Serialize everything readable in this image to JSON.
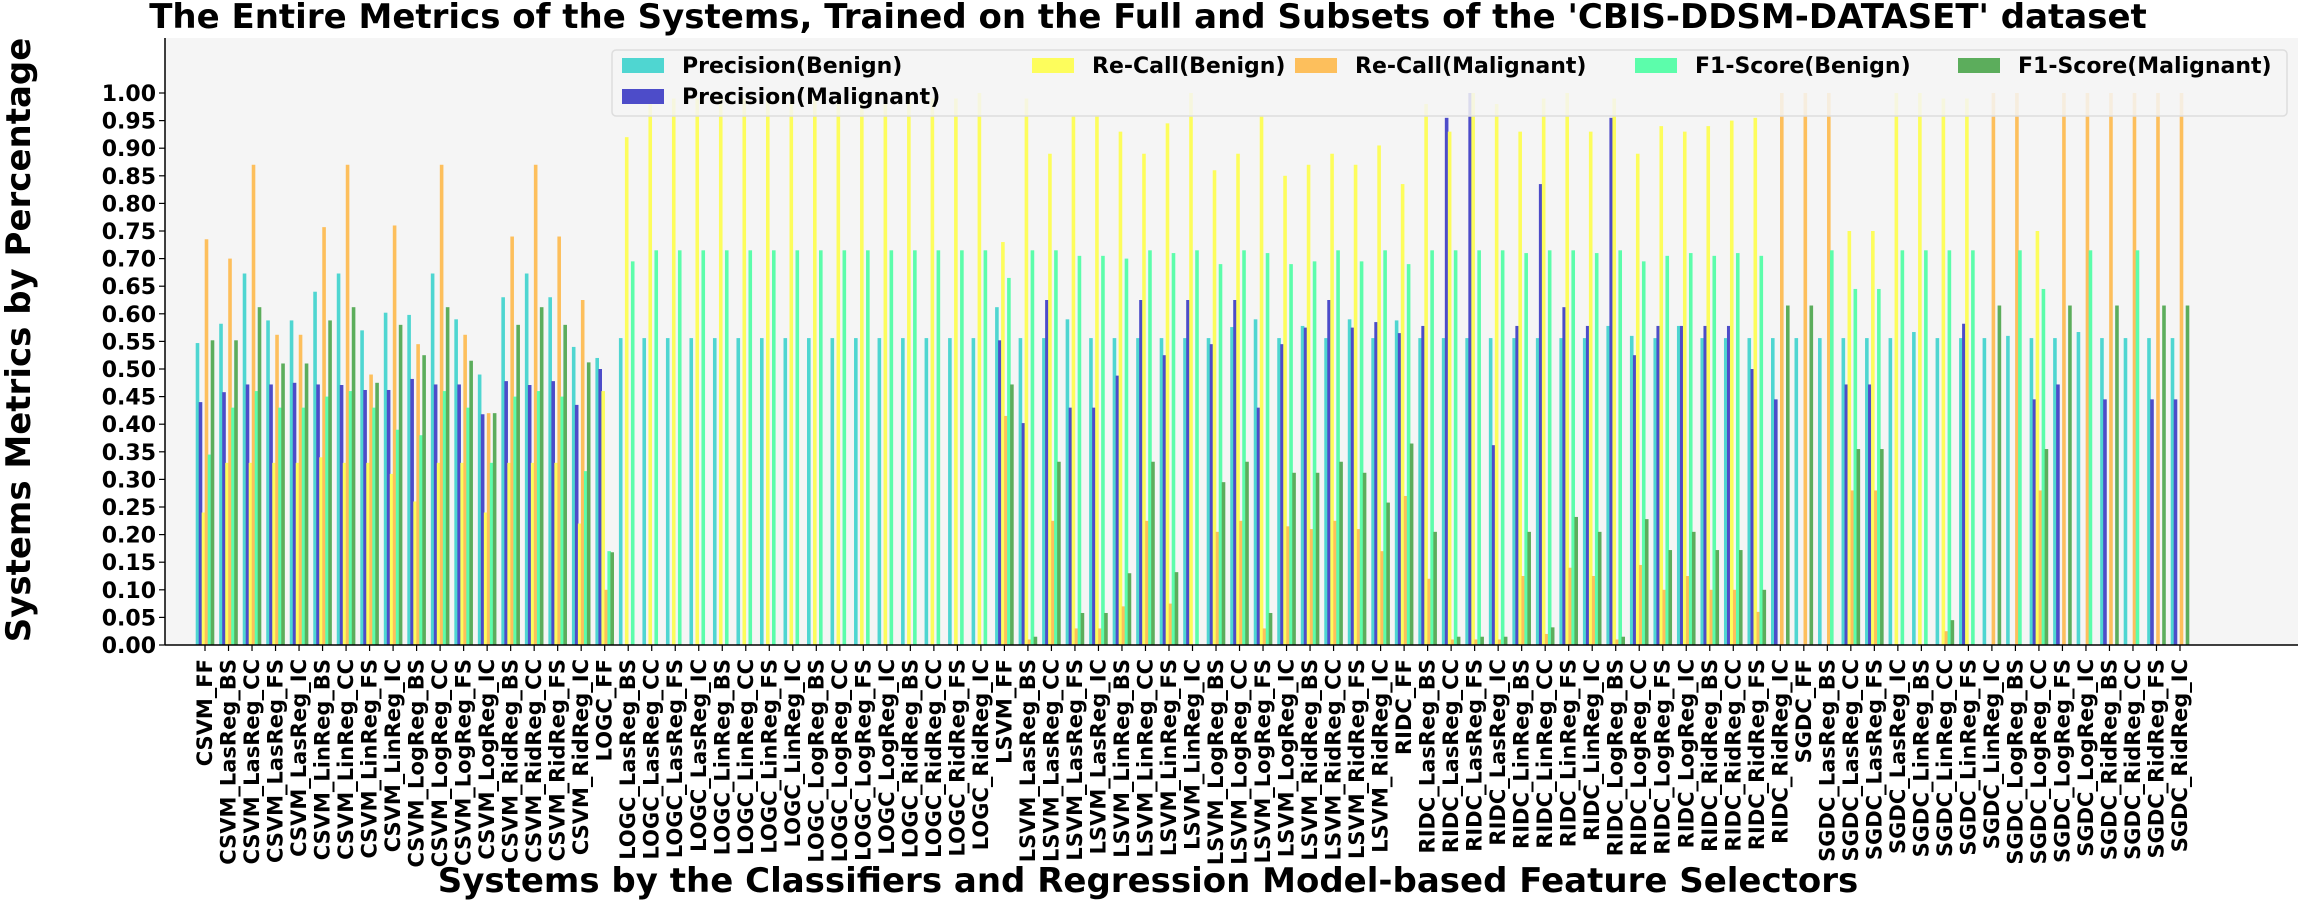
{
  "chart_data": {
    "type": "bar",
    "title": "The Entire Metrics of the Systems, Trained on the Full and Subsets of the 'CBIS-DDSM-DATASET' dataset",
    "xlabel": "Systems by the Classifiers and Regression Model-based Feature Selectors",
    "ylabel": "Systems Metrics by Percentage",
    "ylim": [
      0,
      1.0
    ],
    "yticks": [
      "0.00",
      "0.05",
      "0.10",
      "0.15",
      "0.20",
      "0.25",
      "0.30",
      "0.35",
      "0.40",
      "0.45",
      "0.50",
      "0.55",
      "0.60",
      "0.65",
      "0.70",
      "0.75",
      "0.80",
      "0.85",
      "0.90",
      "0.95",
      "1.00"
    ],
    "grid": false,
    "legend_position": "top-right",
    "categories": [
      "CSVM_FF",
      "CSVM_LasReg_BS",
      "CSVM_LasReg_CC",
      "CSVM_LasReg_FS",
      "CSVM_LasReg_IC",
      "CSVM_LinReg_BS",
      "CSVM_LinReg_CC",
      "CSVM_LinReg_FS",
      "CSVM_LinReg_IC",
      "CSVM_LogReg_BS",
      "CSVM_LogReg_CC",
      "CSVM_LogReg_FS",
      "CSVM_LogReg_IC",
      "CSVM_RidReg_BS",
      "CSVM_RidReg_CC",
      "CSVM_RidReg_FS",
      "CSVM_RidReg_IC",
      "LOGC_FF",
      "LOGC_LasReg_BS",
      "LOGC_LasReg_CC",
      "LOGC_LasReg_FS",
      "LOGC_LasReg_IC",
      "LOGC_LinReg_BS",
      "LOGC_LinReg_CC",
      "LOGC_LinReg_FS",
      "LOGC_LinReg_IC",
      "LOGC_LogReg_BS",
      "LOGC_LogReg_CC",
      "LOGC_LogReg_FS",
      "LOGC_LogReg_IC",
      "LOGC_RidReg_BS",
      "LOGC_RidReg_CC",
      "LOGC_RidReg_FS",
      "LOGC_RidReg_IC",
      "LSVM_FF",
      "LSVM_LasReg_BS",
      "LSVM_LasReg_CC",
      "LSVM_LasReg_FS",
      "LSVM_LasReg_IC",
      "LSVM_LinReg_BS",
      "LSVM_LinReg_CC",
      "LSVM_LinReg_FS",
      "LSVM_LinReg_IC",
      "LSVM_LogReg_BS",
      "LSVM_LogReg_CC",
      "LSVM_LogReg_FS",
      "LSVM_LogReg_IC",
      "LSVM_RidReg_BS",
      "LSVM_RidReg_CC",
      "LSVM_RidReg_FS",
      "LSVM_RidReg_IC",
      "RIDC_FF",
      "RIDC_LasReg_BS",
      "RIDC_LasReg_CC",
      "RIDC_LasReg_FS",
      "RIDC_LasReg_IC",
      "RIDC_LinReg_BS",
      "RIDC_LinReg_CC",
      "RIDC_LinReg_FS",
      "RIDC_LinReg_IC",
      "RIDC_LogReg_BS",
      "RIDC_LogReg_CC",
      "RIDC_LogReg_FS",
      "RIDC_LogReg_IC",
      "RIDC_RidReg_BS",
      "RIDC_RidReg_CC",
      "RIDC_RidReg_FS",
      "RIDC_RidReg_IC",
      "SGDC_FF",
      "SGDC_LasReg_BS",
      "SGDC_LasReg_CC",
      "SGDC_LasReg_FS",
      "SGDC_LasReg_IC",
      "SGDC_LinReg_BS",
      "SGDC_LinReg_CC",
      "SGDC_LinReg_FS",
      "SGDC_LinReg_IC",
      "SGDC_LogReg_BS",
      "SGDC_LogReg_CC",
      "SGDC_LogReg_FS",
      "SGDC_LogReg_IC",
      "SGDC_RidReg_BS",
      "SGDC_RidReg_CC",
      "SGDC_RidReg_FS",
      "SGDC_RidReg_IC"
    ],
    "series": [
      {
        "name": "Precision(Benign)",
        "color": "#4fd6d1",
        "values": [
          0.547,
          0.582,
          0.673,
          0.588,
          0.588,
          0.64,
          0.673,
          0.57,
          0.602,
          0.598,
          0.673,
          0.59,
          0.49,
          0.63,
          0.673,
          0.63,
          0.54,
          0.52,
          0.556,
          0.556,
          0.556,
          0.556,
          0.556,
          0.556,
          0.556,
          0.556,
          0.556,
          0.556,
          0.556,
          0.556,
          0.556,
          0.556,
          0.556,
          0.556,
          0.612,
          0.556,
          0.556,
          0.59,
          0.556,
          0.556,
          0.556,
          0.556,
          0.556,
          0.556,
          0.576,
          0.59,
          0.556,
          0.578,
          0.556,
          0.59,
          0.556,
          0.588,
          0.556,
          0.556,
          0.556,
          0.556,
          0.556,
          0.556,
          0.556,
          0.556,
          0.578,
          0.56,
          0.556,
          0.578,
          0.556,
          0.556,
          0.556,
          0.556,
          0.556,
          0.556,
          0.556,
          0.556,
          0.556,
          0.567,
          0.556,
          0.556,
          0.556,
          0.56,
          0.556,
          0.556,
          0.567,
          0.556,
          0.556,
          0.556,
          0.556
        ]
      },
      {
        "name": "Precision(Malignant)",
        "color": "#4d4cc9",
        "values": [
          0.44,
          0.458,
          0.472,
          0.472,
          0.475,
          0.472,
          0.471,
          0.462,
          0.462,
          0.482,
          0.472,
          0.472,
          0.418,
          0.478,
          0.471,
          0.478,
          0.435,
          0.5,
          0.0,
          0.0,
          0.0,
          0.0,
          0.0,
          0.0,
          0.0,
          0.0,
          0.0,
          0.0,
          0.0,
          0.0,
          0.0,
          0.0,
          0.0,
          0.0,
          0.552,
          0.402,
          0.625,
          0.43,
          0.43,
          0.488,
          0.625,
          0.525,
          0.625,
          0.545,
          0.625,
          0.43,
          0.545,
          0.575,
          0.625,
          0.575,
          0.585,
          0.565,
          0.578,
          0.955,
          1.0,
          0.362,
          0.578,
          0.835,
          0.612,
          0.578,
          0.955,
          0.525,
          0.578,
          0.578,
          0.578,
          0.578,
          0.5,
          0.445,
          0.0,
          0.0,
          0.472,
          0.472,
          0.0,
          0.0,
          0.0,
          0.582,
          0.0,
          0.0,
          0.445,
          0.472,
          0.0,
          0.445,
          0.0,
          0.445,
          0.445
        ]
      },
      {
        "name": "Re-Call(Benign)",
        "color": "#fdfd5c",
        "values": [
          0.24,
          0.33,
          0.33,
          0.33,
          0.33,
          0.34,
          0.33,
          0.33,
          0.31,
          0.26,
          0.33,
          0.33,
          0.24,
          0.33,
          0.33,
          0.33,
          0.22,
          0.46,
          0.92,
          0.99,
          0.99,
          0.99,
          0.99,
          0.99,
          0.99,
          0.99,
          0.99,
          0.99,
          0.99,
          0.99,
          0.99,
          0.99,
          0.99,
          1.0,
          0.73,
          0.99,
          0.89,
          0.96,
          0.96,
          0.93,
          0.89,
          0.945,
          1.0,
          0.86,
          0.89,
          0.96,
          0.85,
          0.87,
          0.89,
          0.87,
          0.905,
          0.835,
          0.98,
          0.93,
          1.0,
          0.98,
          0.93,
          0.99,
          1.0,
          0.93,
          0.99,
          0.89,
          0.94,
          0.93,
          0.94,
          0.95,
          0.955,
          0.0,
          0.0,
          0.0,
          0.75,
          0.75,
          1.0,
          1.0,
          0.99,
          0.99,
          0.0,
          0.0,
          0.75,
          0.0,
          0.0,
          0.0,
          0.0,
          0.0,
          0.0
        ]
      },
      {
        "name": "Re-Call(Malignant)",
        "color": "#fdbf5c",
        "values": [
          0.735,
          0.7,
          0.87,
          0.562,
          0.562,
          0.757,
          0.87,
          0.49,
          0.76,
          0.545,
          0.87,
          0.562,
          0.42,
          0.74,
          0.87,
          0.74,
          0.625,
          0.1,
          0.0,
          0.0,
          0.0,
          0.0,
          0.0,
          0.0,
          0.0,
          0.0,
          0.0,
          0.0,
          0.0,
          0.0,
          0.0,
          0.0,
          0.0,
          0.0,
          0.415,
          0.01,
          0.225,
          0.03,
          0.03,
          0.07,
          0.225,
          0.075,
          0.0,
          0.205,
          0.225,
          0.03,
          0.215,
          0.21,
          0.225,
          0.21,
          0.17,
          0.27,
          0.12,
          0.01,
          0.01,
          0.01,
          0.125,
          0.02,
          0.14,
          0.125,
          0.01,
          0.145,
          0.1,
          0.125,
          0.1,
          0.1,
          0.06,
          1.0,
          1.0,
          1.0,
          0.28,
          0.28,
          0.0,
          0.0,
          0.025,
          0.0,
          1.0,
          1.0,
          0.28,
          1.0,
          1.0,
          1.0,
          1.0,
          1.0,
          1.0
        ]
      },
      {
        "name": "F1-Score(Benign)",
        "color": "#5cfdab",
        "values": [
          0.345,
          0.43,
          0.46,
          0.43,
          0.43,
          0.45,
          0.46,
          0.43,
          0.39,
          0.38,
          0.46,
          0.43,
          0.33,
          0.45,
          0.46,
          0.45,
          0.315,
          0.17,
          0.695,
          0.715,
          0.715,
          0.715,
          0.715,
          0.715,
          0.715,
          0.715,
          0.715,
          0.715,
          0.715,
          0.715,
          0.715,
          0.715,
          0.715,
          0.715,
          0.665,
          0.715,
          0.715,
          0.705,
          0.705,
          0.7,
          0.715,
          0.71,
          0.715,
          0.69,
          0.715,
          0.71,
          0.69,
          0.695,
          0.715,
          0.695,
          0.715,
          0.69,
          0.715,
          0.715,
          0.715,
          0.715,
          0.71,
          0.715,
          0.715,
          0.71,
          0.715,
          0.695,
          0.705,
          0.71,
          0.705,
          0.71,
          0.705,
          0.0,
          0.0,
          0.715,
          0.645,
          0.645,
          0.715,
          0.715,
          0.715,
          0.715,
          0.0,
          0.715,
          0.645,
          0.0,
          0.715,
          0.0,
          0.715,
          0.0,
          0.0
        ]
      },
      {
        "name": "F1-Score(Malignant)",
        "color": "#5cad5c",
        "values": [
          0.552,
          0.552,
          0.612,
          0.51,
          0.51,
          0.588,
          0.612,
          0.475,
          0.58,
          0.525,
          0.612,
          0.515,
          0.42,
          0.58,
          0.612,
          0.58,
          0.512,
          0.168,
          0.0,
          0.0,
          0.0,
          0.0,
          0.0,
          0.0,
          0.0,
          0.0,
          0.0,
          0.0,
          0.0,
          0.0,
          0.0,
          0.0,
          0.0,
          0.0,
          0.472,
          0.015,
          0.332,
          0.058,
          0.058,
          0.13,
          0.332,
          0.132,
          0.0,
          0.295,
          0.332,
          0.058,
          0.312,
          0.312,
          0.332,
          0.312,
          0.258,
          0.365,
          0.205,
          0.015,
          0.015,
          0.015,
          0.205,
          0.032,
          0.232,
          0.205,
          0.015,
          0.228,
          0.172,
          0.205,
          0.172,
          0.172,
          0.1,
          0.615,
          0.615,
          0.0,
          0.355,
          0.355,
          0.0,
          0.0,
          0.045,
          0.0,
          0.615,
          0.0,
          0.355,
          0.615,
          0.0,
          0.615,
          0.0,
          0.615,
          0.615
        ]
      }
    ]
  }
}
